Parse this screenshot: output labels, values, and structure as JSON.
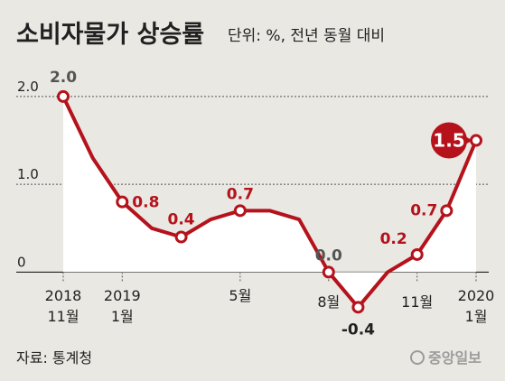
{
  "header": {
    "title": "소비자물가 상승률",
    "unit": "단위: %, 전년 동월 대비"
  },
  "source": "자료: 통계청",
  "logo_text": "중앙일보",
  "colors": {
    "background": "#e9e8e3",
    "line": "#b5121b",
    "text": "#231f20",
    "label_gray": "#555555",
    "area": "#ffffff"
  },
  "chart_data": {
    "type": "line",
    "title": "소비자물가 상승률",
    "subtitle": "단위: %, 전년 동월 대비",
    "ylim": [
      -0.52,
      2.4
    ],
    "y_ticks": [
      {
        "value": 0,
        "label": "0"
      },
      {
        "value": 1.0,
        "label": "1.0"
      },
      {
        "value": 2.0,
        "label": "2.0"
      }
    ],
    "x_tick_labels": [
      {
        "index": 0,
        "lines": [
          "2018",
          "11월"
        ]
      },
      {
        "index": 2,
        "lines": [
          "2019",
          "1월"
        ]
      },
      {
        "index": 6,
        "lines": [
          "5월"
        ]
      },
      {
        "index": 9,
        "lines": [
          "8월"
        ]
      },
      {
        "index": 12,
        "lines": [
          "11월"
        ]
      },
      {
        "index": 14,
        "lines": [
          "2020",
          "1월"
        ]
      }
    ],
    "x": [
      "2018-11",
      "2018-12",
      "2019-01",
      "2019-02",
      "2019-03",
      "2019-04",
      "2019-05",
      "2019-06",
      "2019-07",
      "2019-08",
      "2019-09",
      "2019-10",
      "2019-11",
      "2019-12",
      "2020-01"
    ],
    "series": [
      {
        "values": [
          2.0,
          1.3,
          0.8,
          0.5,
          0.4,
          0.6,
          0.7,
          0.7,
          0.6,
          0.0,
          -0.4,
          0.0,
          0.2,
          0.7,
          1.5
        ]
      }
    ],
    "data_labels": [
      {
        "index": 0,
        "text": "2.0"
      },
      {
        "index": 2,
        "text": "0.8"
      },
      {
        "index": 4,
        "text": "0.4"
      },
      {
        "index": 6,
        "text": "0.7"
      },
      {
        "index": 9,
        "text": "0.0"
      },
      {
        "index": 10,
        "text": "-0.4"
      },
      {
        "index": 12,
        "text": "0.2"
      },
      {
        "index": 13,
        "text": "0.7"
      },
      {
        "index": 14,
        "text": "1.5",
        "highlight": true
      }
    ],
    "grid": true
  }
}
